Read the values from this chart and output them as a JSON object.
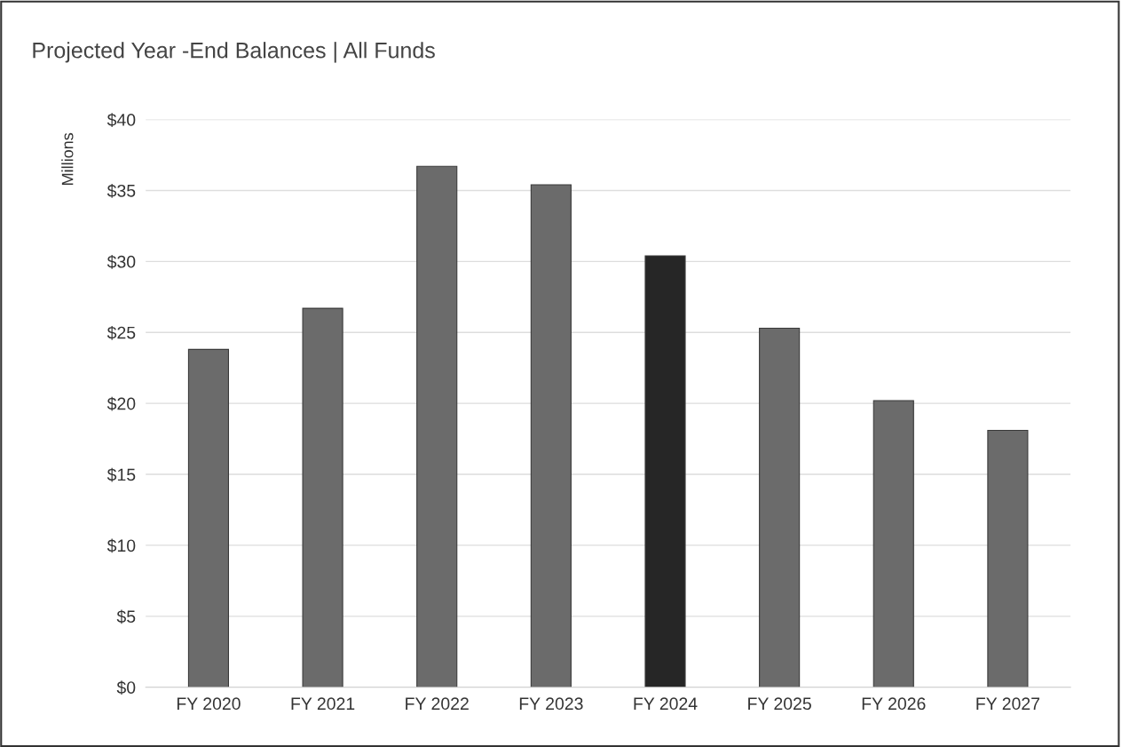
{
  "chart_data": {
    "type": "bar",
    "title": "Projected Year -End Balances | All Funds",
    "ylabel": "Millions",
    "categories": [
      "FY 2020",
      "FY 2021",
      "FY 2022",
      "FY 2023",
      "FY 2024",
      "FY 2025",
      "FY 2026",
      "FY 2027"
    ],
    "values": [
      23.8,
      26.7,
      36.7,
      35.4,
      30.4,
      25.3,
      20.2,
      18.1
    ],
    "colors": [
      "#6b6b6b",
      "#6b6b6b",
      "#6b6b6b",
      "#6b6b6b",
      "#262626",
      "#6b6b6b",
      "#6b6b6b",
      "#6b6b6b"
    ],
    "ylim": [
      0,
      40
    ],
    "yticks": [
      {
        "value": 0,
        "label": "$0"
      },
      {
        "value": 5,
        "label": "$5"
      },
      {
        "value": 10,
        "label": "$10"
      },
      {
        "value": 15,
        "label": "$15"
      },
      {
        "value": 20,
        "label": "$20"
      },
      {
        "value": 25,
        "label": "$25"
      },
      {
        "value": 30,
        "label": "$30"
      },
      {
        "value": 35,
        "label": "$35"
      },
      {
        "value": 40,
        "label": "$40"
      }
    ],
    "grid": "y",
    "legend": false
  }
}
